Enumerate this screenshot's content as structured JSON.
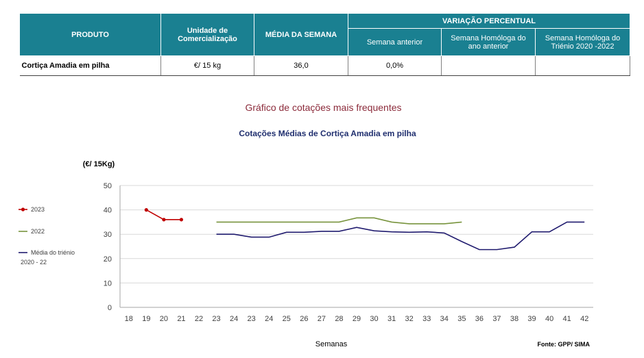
{
  "table": {
    "headers": {
      "produto": "PRODUTO",
      "unidade": "Unidade de Comercialização",
      "media": "MÉDIA DA SEMANA",
      "variacao": "VARIAÇÃO PERCENTUAL",
      "semana_anterior": "Semana anterior",
      "semana_homologa": "Semana Homóloga do ano anterior",
      "semana_trienio": "Semana Homóloga do Triénio 2020 -2022"
    },
    "row": {
      "produto": "Cortiça Amadia em pilha",
      "unidade": "€/ 15 kg",
      "media": "36,0",
      "semana_anterior": "0,0%",
      "semana_homologa": "",
      "semana_trienio": ""
    },
    "header_color": "#1a8091"
  },
  "section_title": "Gráfico de cotações mais frequentes",
  "chart_data": {
    "type": "line",
    "title": "Cotações Médias de Cortiça Amadia em pilha",
    "ylabel": "(€/ 15Kg)",
    "xlabel": "Semanas",
    "source": "Fonte: GPP/ SIMA",
    "categories": [
      "18",
      "19",
      "20",
      "21",
      "22",
      "23",
      "24",
      "23",
      "24",
      "25",
      "26",
      "27",
      "28",
      "29",
      "30",
      "31",
      "32",
      "33",
      "34",
      "35",
      "36",
      "37",
      "38",
      "39",
      "40",
      "41",
      "42"
    ],
    "yticks": [
      0,
      10,
      20,
      30,
      40,
      50
    ],
    "ylim": [
      0,
      50
    ],
    "grid": true,
    "legend_position": "left",
    "series": [
      {
        "name": "2023",
        "color": "#c00000",
        "marker": true,
        "values": [
          null,
          40,
          36,
          36,
          null,
          null,
          null,
          null,
          null,
          null,
          null,
          null,
          null,
          null,
          null,
          null,
          null,
          null,
          null,
          null,
          null,
          null,
          null,
          null,
          null,
          null,
          null
        ]
      },
      {
        "name": "2022",
        "color": "#77933c",
        "marker": false,
        "values": [
          null,
          null,
          null,
          null,
          null,
          35,
          35,
          35,
          35,
          35,
          35,
          35,
          35,
          36.7,
          36.7,
          35,
          34.3,
          34.3,
          34.3,
          35,
          null,
          null,
          null,
          null,
          null,
          null,
          null
        ]
      },
      {
        "name": "Média do triénio 2020 - 22",
        "color": "#1f1a6e",
        "marker": false,
        "values": [
          null,
          null,
          null,
          null,
          null,
          30,
          30,
          28.8,
          28.8,
          30.8,
          30.8,
          31.2,
          31.2,
          32.8,
          31.4,
          31,
          30.8,
          31,
          30.5,
          27,
          23.7,
          23.7,
          24.7,
          31,
          31,
          35,
          35
        ]
      }
    ]
  }
}
